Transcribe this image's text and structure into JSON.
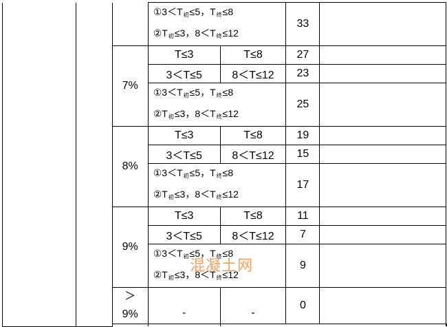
{
  "special": {
    "l1a": "①3＜T",
    "l1s1": "初",
    "l1b": "≤5，T",
    "l1s2": "终",
    "l1c": "≤8",
    "l2a": "②T",
    "l2s1": "初",
    "l2b": "≤3，8＜T",
    "l2s2": "终",
    "l2c": "≤12"
  },
  "conds": {
    "a1": "T≤3",
    "b1": "T≤8",
    "a2": "3＜T≤5",
    "b2": "8＜T≤12",
    "dash": "-"
  },
  "groups": [
    {
      "pct": "",
      "v3": "33"
    },
    {
      "pct": "7%",
      "v1": "27",
      "v2": "23",
      "v3": "25"
    },
    {
      "pct": "8%",
      "v1": "19",
      "v2": "15",
      "v3": "17"
    },
    {
      "pct": "9%",
      "v1": "11",
      "v2": "7",
      "v3": "9"
    },
    {
      "pct": "＞ 9%",
      "v": "0"
    }
  ],
  "watermark": "混凝土网"
}
